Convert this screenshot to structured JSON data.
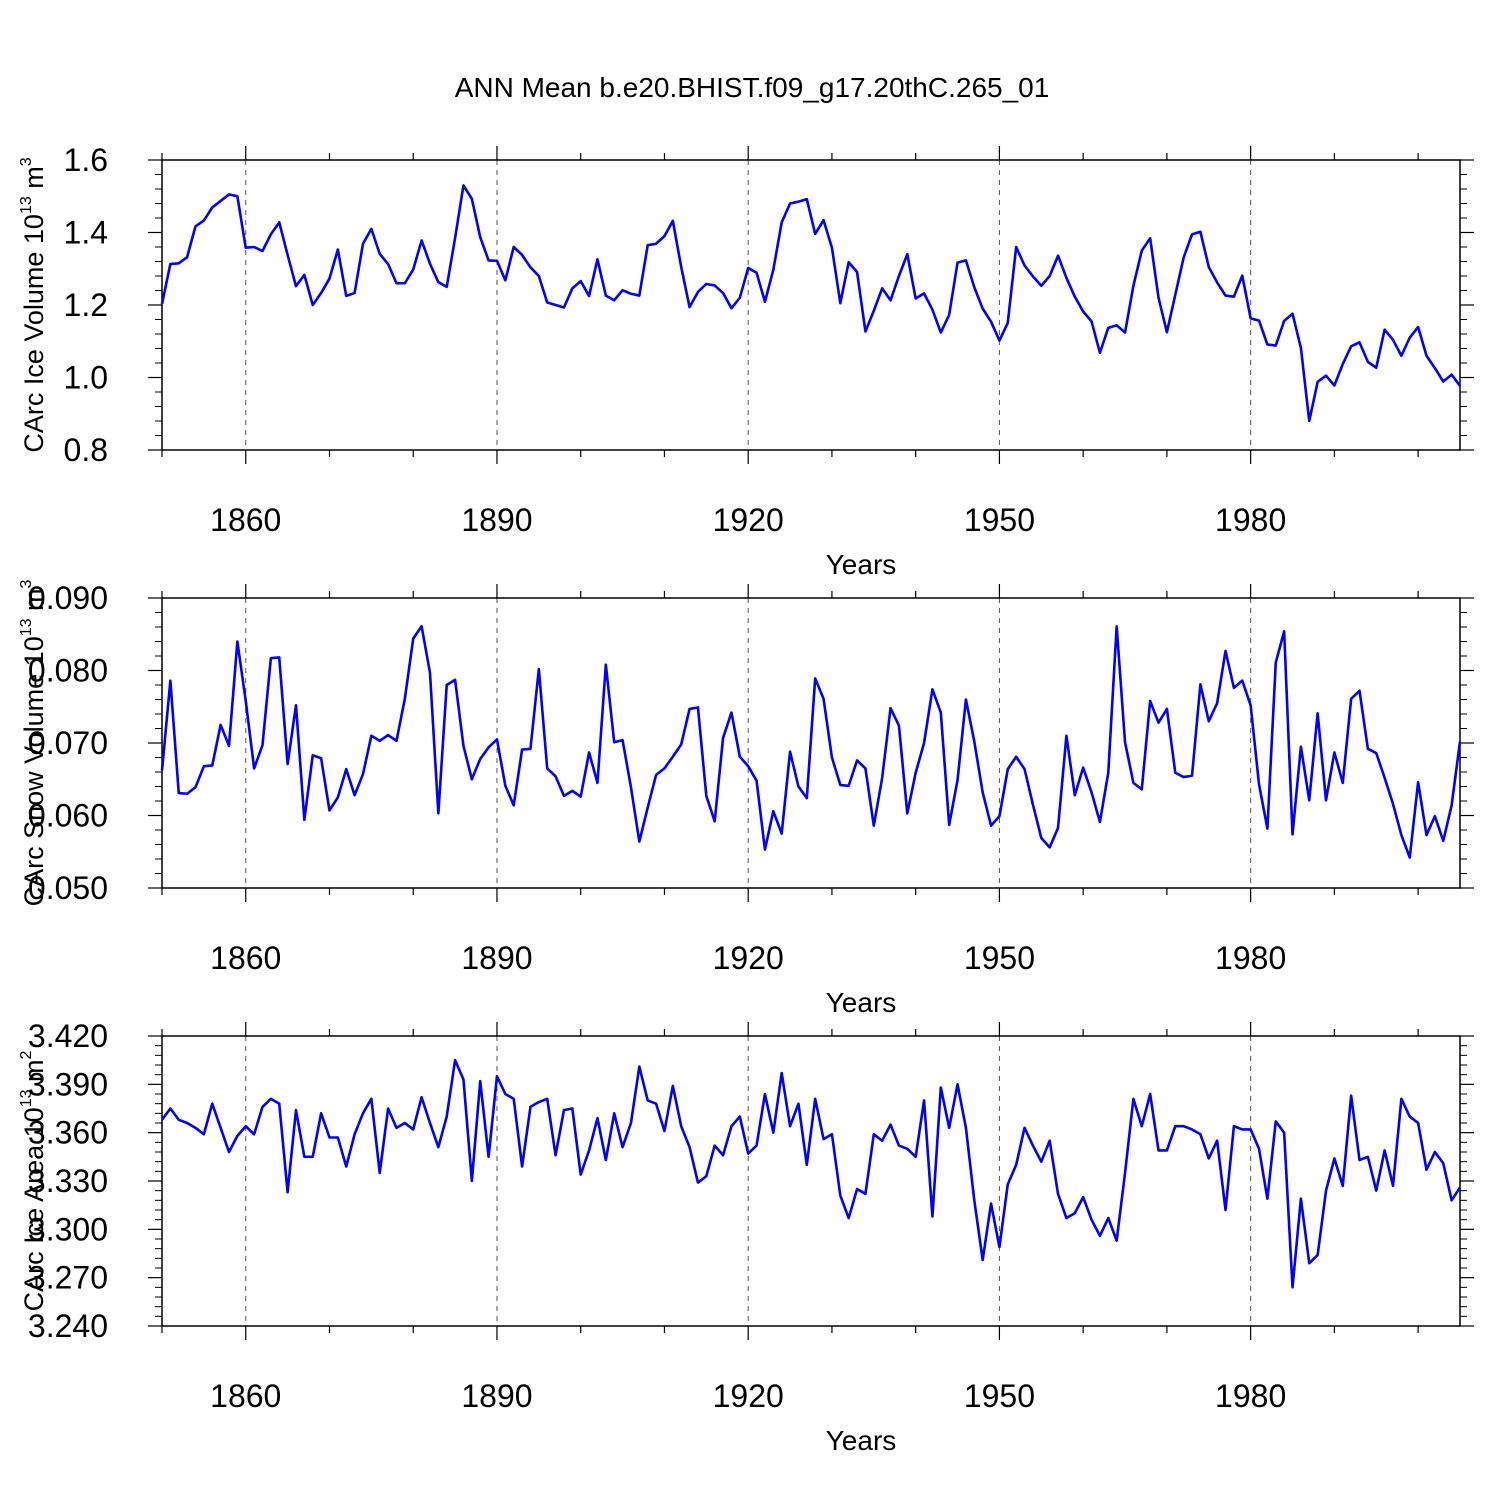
{
  "figure_title": "ANN Mean b.e20.BHIST.f09_g17.20thC.265_01",
  "line_color": "#0000ff",
  "chart_data": [
    {
      "type": "line",
      "title": "",
      "xlabel": "Years",
      "ylabel": "CArc Ice Volume 10",
      "ylabel_exponent": "13",
      "ylabel_unit_base": " m",
      "ylabel_unit_exponent": "3",
      "xlim": [
        1850,
        2005
      ],
      "ylim": [
        0.8,
        1.6
      ],
      "xticks": [
        1860,
        1890,
        1920,
        1950,
        1980
      ],
      "xtick_labels": [
        "1860",
        "1890",
        "1920",
        "1950",
        "1980"
      ],
      "yticks": [
        0.8,
        1.0,
        1.2,
        1.4,
        1.6
      ],
      "ytick_labels": [
        "0.8",
        "1.0",
        "1.2",
        "1.4",
        "1.6"
      ],
      "x_start": 1850,
      "series": [
        {
          "name": "CArc Ice Volume",
          "values": [
            1.203,
            1.313,
            1.315,
            1.332,
            1.417,
            1.433,
            1.469,
            1.487,
            1.505,
            1.5,
            1.358,
            1.36,
            1.349,
            1.395,
            1.428,
            1.338,
            1.252,
            1.283,
            1.2,
            1.233,
            1.273,
            1.353,
            1.225,
            1.233,
            1.369,
            1.41,
            1.341,
            1.313,
            1.26,
            1.26,
            1.298,
            1.378,
            1.314,
            1.263,
            1.25,
            1.385,
            1.53,
            1.493,
            1.387,
            1.323,
            1.322,
            1.268,
            1.36,
            1.338,
            1.304,
            1.28,
            1.207,
            1.2,
            1.193,
            1.246,
            1.266,
            1.225,
            1.326,
            1.226,
            1.213,
            1.241,
            1.231,
            1.226,
            1.365,
            1.369,
            1.39,
            1.432,
            1.305,
            1.194,
            1.236,
            1.258,
            1.254,
            1.233,
            1.191,
            1.22,
            1.302,
            1.289,
            1.209,
            1.297,
            1.428,
            1.48,
            1.485,
            1.492,
            1.396,
            1.434,
            1.358,
            1.205,
            1.318,
            1.291,
            1.127,
            1.184,
            1.246,
            1.213,
            1.28,
            1.34,
            1.218,
            1.232,
            1.187,
            1.124,
            1.173,
            1.317,
            1.323,
            1.249,
            1.19,
            1.154,
            1.102,
            1.151,
            1.36,
            1.309,
            1.279,
            1.253,
            1.28,
            1.336,
            1.275,
            1.223,
            1.182,
            1.155,
            1.068,
            1.137,
            1.144,
            1.124,
            1.253,
            1.35,
            1.384,
            1.22,
            1.125,
            1.228,
            1.331,
            1.395,
            1.402,
            1.305,
            1.262,
            1.226,
            1.223,
            1.281,
            1.163,
            1.157,
            1.091,
            1.088,
            1.156,
            1.176,
            1.082,
            0.88,
            0.988,
            1.005,
            0.978,
            1.037,
            1.086,
            1.097,
            1.043,
            1.027,
            1.132,
            1.104,
            1.06,
            1.11,
            1.139,
            1.06,
            1.026,
            0.989,
            1.008,
            0.977
          ]
        }
      ]
    },
    {
      "type": "line",
      "title": "",
      "xlabel": "Years",
      "ylabel": "CArc Snow Volume 10",
      "ylabel_exponent": "13",
      "ylabel_unit_base": " m",
      "ylabel_unit_exponent": "3",
      "xlim": [
        1850,
        2005
      ],
      "ylim": [
        0.05,
        0.09
      ],
      "xticks": [
        1860,
        1890,
        1920,
        1950,
        1980
      ],
      "xtick_labels": [
        "1860",
        "1890",
        "1920",
        "1950",
        "1980"
      ],
      "yticks": [
        0.05,
        0.06,
        0.07,
        0.08,
        0.09
      ],
      "ytick_labels": [
        "0.050",
        "0.060",
        "0.070",
        "0.080",
        "0.090"
      ],
      "x_start": 1850,
      "series": [
        {
          "name": "CArc Snow Volume",
          "values": [
            0.0662,
            0.0786,
            0.0631,
            0.063,
            0.0639,
            0.0668,
            0.0669,
            0.0725,
            0.0696,
            0.084,
            0.0758,
            0.0665,
            0.0697,
            0.0817,
            0.0818,
            0.0671,
            0.0752,
            0.0594,
            0.0683,
            0.0679,
            0.0607,
            0.0625,
            0.0664,
            0.0628,
            0.0657,
            0.071,
            0.0703,
            0.0711,
            0.0703,
            0.0761,
            0.0844,
            0.0861,
            0.0797,
            0.0603,
            0.078,
            0.0787,
            0.0696,
            0.065,
            0.0678,
            0.0694,
            0.0705,
            0.0641,
            0.0614,
            0.0691,
            0.0692,
            0.0802,
            0.0665,
            0.0654,
            0.0627,
            0.0634,
            0.0626,
            0.0687,
            0.0645,
            0.0808,
            0.0701,
            0.0704,
            0.0639,
            0.0564,
            0.0611,
            0.0656,
            0.0665,
            0.0681,
            0.0698,
            0.0747,
            0.0749,
            0.0627,
            0.0592,
            0.0707,
            0.0742,
            0.0681,
            0.0668,
            0.0648,
            0.0553,
            0.0606,
            0.0575,
            0.0688,
            0.064,
            0.0624,
            0.0789,
            0.0761,
            0.068,
            0.0642,
            0.0641,
            0.0676,
            0.0665,
            0.0586,
            0.0652,
            0.0748,
            0.0724,
            0.0603,
            0.0659,
            0.07,
            0.0774,
            0.0742,
            0.0587,
            0.0649,
            0.076,
            0.0702,
            0.0632,
            0.0586,
            0.0599,
            0.0664,
            0.0681,
            0.0664,
            0.0615,
            0.0569,
            0.0556,
            0.0583,
            0.071,
            0.0628,
            0.0666,
            0.0632,
            0.0591,
            0.0659,
            0.0861,
            0.0701,
            0.0645,
            0.0636,
            0.0758,
            0.0728,
            0.0747,
            0.0659,
            0.0653,
            0.0655,
            0.0781,
            0.073,
            0.0755,
            0.0827,
            0.0776,
            0.0786,
            0.0752,
            0.0643,
            0.0582,
            0.0811,
            0.0854,
            0.0574,
            0.0695,
            0.0621,
            0.0741,
            0.0621,
            0.0687,
            0.0645,
            0.0761,
            0.0772,
            0.0692,
            0.0686,
            0.0652,
            0.0616,
            0.0573,
            0.0542,
            0.0646,
            0.0573,
            0.0599,
            0.0565,
            0.0614,
            0.0702
          ]
        }
      ]
    },
    {
      "type": "line",
      "title": "",
      "xlabel": "Years",
      "ylabel": "CArc Ice Area 10",
      "ylabel_exponent": "13",
      "ylabel_unit_base": " m",
      "ylabel_unit_exponent": "2",
      "xlim": [
        1850,
        2005
      ],
      "ylim": [
        3.24,
        3.42
      ],
      "xticks": [
        1860,
        1890,
        1920,
        1950,
        1980
      ],
      "xtick_labels": [
        "1860",
        "1890",
        "1920",
        "1950",
        "1980"
      ],
      "yticks": [
        3.24,
        3.27,
        3.3,
        3.33,
        3.36,
        3.39,
        3.42
      ],
      "ytick_labels": [
        "3.240",
        "3.270",
        "3.300",
        "3.330",
        "3.360",
        "3.390",
        "3.420"
      ],
      "x_start": 1850,
      "series": [
        {
          "name": "CArc Ice Area",
          "values": [
            3.368,
            3.375,
            3.368,
            3.366,
            3.363,
            3.359,
            3.378,
            3.363,
            3.348,
            3.358,
            3.364,
            3.359,
            3.376,
            3.381,
            3.378,
            3.323,
            3.374,
            3.345,
            3.345,
            3.372,
            3.357,
            3.357,
            3.339,
            3.359,
            3.372,
            3.381,
            3.335,
            3.375,
            3.363,
            3.366,
            3.362,
            3.382,
            3.366,
            3.351,
            3.37,
            3.405,
            3.393,
            3.33,
            3.392,
            3.345,
            3.395,
            3.384,
            3.381,
            3.339,
            3.376,
            3.379,
            3.381,
            3.346,
            3.374,
            3.375,
            3.334,
            3.349,
            3.369,
            3.343,
            3.372,
            3.351,
            3.366,
            3.401,
            3.38,
            3.378,
            3.361,
            3.389,
            3.364,
            3.351,
            3.329,
            3.333,
            3.352,
            3.346,
            3.364,
            3.37,
            3.347,
            3.352,
            3.384,
            3.36,
            3.397,
            3.364,
            3.378,
            3.34,
            3.381,
            3.356,
            3.359,
            3.321,
            3.307,
            3.325,
            3.322,
            3.359,
            3.355,
            3.365,
            3.352,
            3.35,
            3.345,
            3.38,
            3.308,
            3.388,
            3.363,
            3.39,
            3.363,
            3.318,
            3.281,
            3.316,
            3.289,
            3.328,
            3.34,
            3.363,
            3.352,
            3.342,
            3.355,
            3.322,
            3.307,
            3.31,
            3.32,
            3.306,
            3.296,
            3.307,
            3.293,
            3.335,
            3.381,
            3.364,
            3.384,
            3.349,
            3.349,
            3.364,
            3.364,
            3.362,
            3.359,
            3.344,
            3.355,
            3.312,
            3.364,
            3.362,
            3.362,
            3.35,
            3.319,
            3.367,
            3.36,
            3.264,
            3.319,
            3.279,
            3.284,
            3.324,
            3.344,
            3.327,
            3.383,
            3.343,
            3.345,
            3.324,
            3.349,
            3.327,
            3.381,
            3.37,
            3.366,
            3.337,
            3.348,
            3.341,
            3.318,
            3.326
          ]
        }
      ]
    }
  ]
}
